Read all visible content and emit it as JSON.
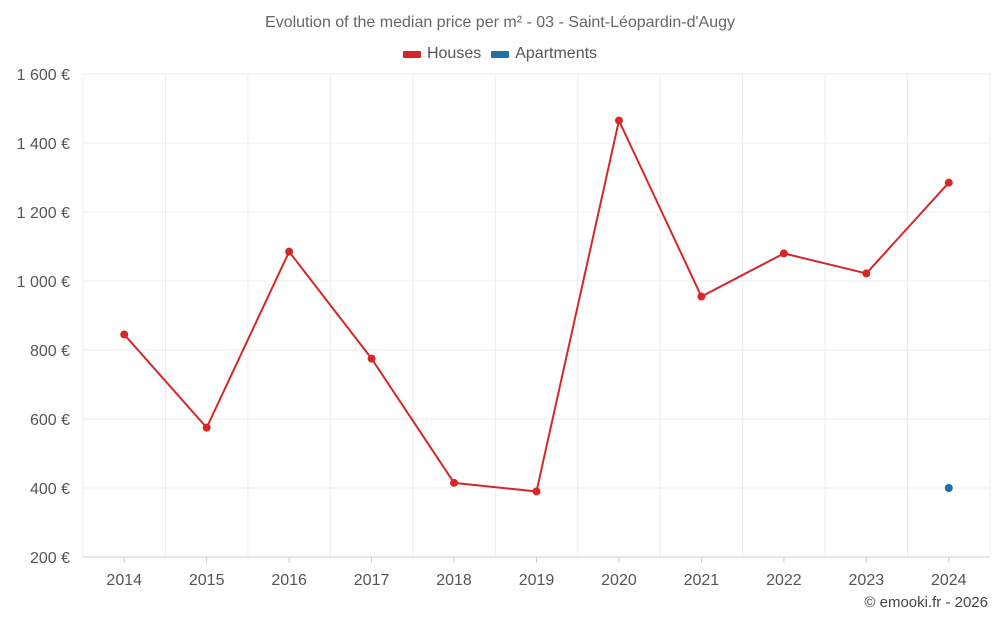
{
  "chart_data": {
    "type": "line",
    "title": "Evolution of the median price per m² - 03 - Saint-Léopardin-d'Augy",
    "categories": [
      "2014",
      "2015",
      "2016",
      "2017",
      "2018",
      "2019",
      "2020",
      "2021",
      "2022",
      "2023",
      "2024"
    ],
    "series": [
      {
        "name": "Houses",
        "color": "#d62728",
        "values": [
          845,
          575,
          1085,
          775,
          415,
          390,
          1465,
          955,
          1080,
          1022,
          1285
        ]
      },
      {
        "name": "Apartments",
        "color": "#1f6fa8",
        "values": [
          null,
          null,
          null,
          null,
          null,
          null,
          null,
          null,
          null,
          null,
          400
        ]
      }
    ],
    "y_ticks": [
      {
        "value": 200,
        "label": "200 €"
      },
      {
        "value": 400,
        "label": "400 €"
      },
      {
        "value": 600,
        "label": "600 €"
      },
      {
        "value": 800,
        "label": "800 €"
      },
      {
        "value": 1000,
        "label": "1 000 €"
      },
      {
        "value": 1200,
        "label": "1 200 €"
      },
      {
        "value": 1400,
        "label": "1 400 €"
      },
      {
        "value": 1600,
        "label": "1 600 €"
      }
    ],
    "ylim": [
      200,
      1600
    ],
    "xlabel": "",
    "ylabel": "",
    "grid": true,
    "legend_position": "top-center"
  },
  "credit": "© emooki.fr - 2026"
}
